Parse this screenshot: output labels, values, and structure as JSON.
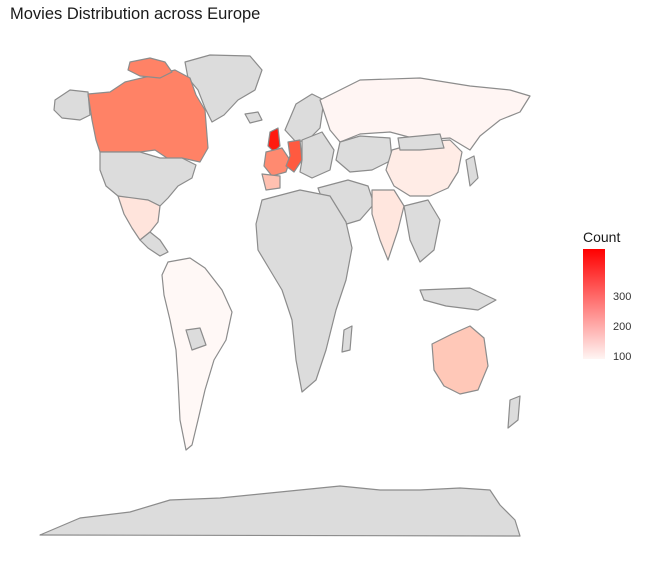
{
  "title": "Movies Distribution across Europe",
  "legend": {
    "title": "Count",
    "min_color": "#fff5f3",
    "max_color": "#ff0000",
    "ticks": [
      {
        "label": "300",
        "value": 300
      },
      {
        "label": "200",
        "value": 200
      },
      {
        "label": "100",
        "value": 100
      }
    ],
    "range": [
      0,
      380
    ]
  },
  "colors": {
    "no_data": "#dcdcdc",
    "border": "#8c8c8c",
    "background": "#ffffff"
  },
  "chart_data": {
    "type": "choropleth",
    "value_name": "Count",
    "highlighted_regions": [
      {
        "region": "Canada",
        "fill": "#ff8266"
      },
      {
        "region": "United Kingdom",
        "fill": "#ff1a10"
      },
      {
        "region": "Germany",
        "fill": "#ff5a40"
      },
      {
        "region": "France",
        "fill": "#ff8a70"
      },
      {
        "region": "Spain",
        "fill": "#ffc0b0"
      },
      {
        "region": "Australia",
        "fill": "#ffc8b8"
      },
      {
        "region": "China",
        "fill": "#ffece6"
      },
      {
        "region": "India",
        "fill": "#ffe6de"
      },
      {
        "region": "Mexico",
        "fill": "#ffe4dc"
      },
      {
        "region": "Russia",
        "fill": "#fff5f3"
      },
      {
        "region": "South America",
        "fill": "#fff8f6"
      }
    ]
  }
}
